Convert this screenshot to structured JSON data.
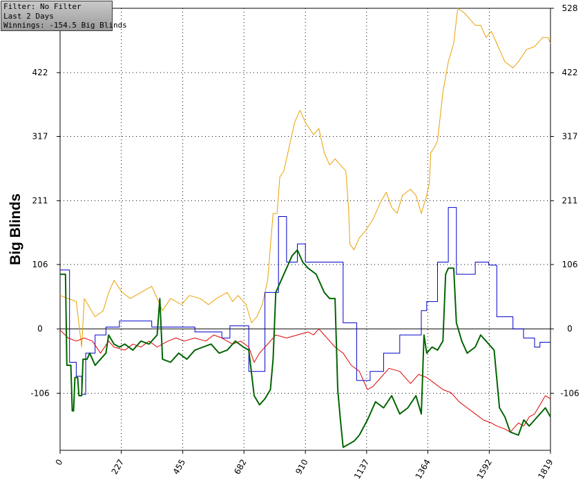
{
  "info_box": {
    "filter": "Filter: No Filter",
    "period": "Last  2 Days",
    "winnings": "Winnings: -154.5 Big Blinds"
  },
  "chart_data": {
    "type": "line",
    "title": "",
    "xlabel": "",
    "ylabel": "Big Blinds",
    "xlim": [
      0,
      1819
    ],
    "ylim": [
      -200,
      528
    ],
    "x_ticks": [
      "0",
      "227",
      "455",
      "682",
      "910",
      "1137",
      "1364",
      "1592",
      "1819"
    ],
    "y_ticks": [
      "528",
      "422",
      "317",
      "211",
      "106",
      "0",
      "-106"
    ],
    "grid": true,
    "series": [
      {
        "color": "#e8a000",
        "points": [
          [
            0,
            55
          ],
          [
            60,
            45
          ],
          [
            80,
            -30
          ],
          [
            90,
            50
          ],
          [
            130,
            20
          ],
          [
            160,
            30
          ],
          [
            180,
            60
          ],
          [
            200,
            80
          ],
          [
            230,
            60
          ],
          [
            260,
            50
          ],
          [
            300,
            60
          ],
          [
            340,
            70
          ],
          [
            380,
            30
          ],
          [
            410,
            50
          ],
          [
            450,
            40
          ],
          [
            480,
            55
          ],
          [
            520,
            50
          ],
          [
            550,
            40
          ],
          [
            580,
            50
          ],
          [
            620,
            60
          ],
          [
            640,
            45
          ],
          [
            660,
            55
          ],
          [
            690,
            40
          ],
          [
            710,
            10
          ],
          [
            730,
            20
          ],
          [
            750,
            40
          ],
          [
            770,
            80
          ],
          [
            790,
            190
          ],
          [
            805,
            190
          ],
          [
            815,
            250
          ],
          [
            830,
            260
          ],
          [
            850,
            300
          ],
          [
            870,
            340
          ],
          [
            890,
            360
          ],
          [
            910,
            340
          ],
          [
            940,
            320
          ],
          [
            960,
            330
          ],
          [
            980,
            290
          ],
          [
            1000,
            270
          ],
          [
            1020,
            280
          ],
          [
            1040,
            270
          ],
          [
            1060,
            260
          ],
          [
            1070,
            200
          ],
          [
            1075,
            140
          ],
          [
            1090,
            130
          ],
          [
            1110,
            150
          ],
          [
            1130,
            160
          ],
          [
            1160,
            180
          ],
          [
            1190,
            210
          ],
          [
            1210,
            225
          ],
          [
            1230,
            200
          ],
          [
            1250,
            190
          ],
          [
            1270,
            220
          ],
          [
            1300,
            230
          ],
          [
            1320,
            220
          ],
          [
            1340,
            190
          ],
          [
            1360,
            220
          ],
          [
            1370,
            240
          ],
          [
            1375,
            290
          ],
          [
            1390,
            300
          ],
          [
            1400,
            310
          ],
          [
            1420,
            390
          ],
          [
            1440,
            440
          ],
          [
            1460,
            470
          ],
          [
            1475,
            528
          ],
          [
            1500,
            520
          ],
          [
            1520,
            510
          ],
          [
            1540,
            500
          ],
          [
            1560,
            500
          ],
          [
            1580,
            480
          ],
          [
            1600,
            490
          ],
          [
            1620,
            470
          ],
          [
            1630,
            460
          ],
          [
            1650,
            440
          ],
          [
            1680,
            430
          ],
          [
            1700,
            440
          ],
          [
            1730,
            460
          ],
          [
            1760,
            465
          ],
          [
            1790,
            480
          ],
          [
            1810,
            480
          ],
          [
            1819,
            470
          ]
        ]
      },
      {
        "color": "#0000cc",
        "points": [
          [
            0,
            97
          ],
          [
            35,
            97
          ],
          [
            35,
            -55
          ],
          [
            60,
            -55
          ],
          [
            60,
            -78
          ],
          [
            80,
            -78
          ],
          [
            80,
            -108
          ],
          [
            95,
            -108
          ],
          [
            95,
            -40
          ],
          [
            130,
            -40
          ],
          [
            130,
            -10
          ],
          [
            170,
            -10
          ],
          [
            170,
            3
          ],
          [
            220,
            3
          ],
          [
            220,
            13
          ],
          [
            340,
            13
          ],
          [
            340,
            3
          ],
          [
            500,
            3
          ],
          [
            500,
            -5
          ],
          [
            600,
            -5
          ],
          [
            600,
            -15
          ],
          [
            630,
            -15
          ],
          [
            630,
            5
          ],
          [
            700,
            5
          ],
          [
            700,
            -70
          ],
          [
            760,
            -70
          ],
          [
            760,
            60
          ],
          [
            810,
            60
          ],
          [
            810,
            185
          ],
          [
            840,
            185
          ],
          [
            840,
            110
          ],
          [
            880,
            110
          ],
          [
            880,
            140
          ],
          [
            910,
            140
          ],
          [
            910,
            110
          ],
          [
            1050,
            110
          ],
          [
            1050,
            10
          ],
          [
            1100,
            10
          ],
          [
            1100,
            -85
          ],
          [
            1150,
            -85
          ],
          [
            1150,
            -70
          ],
          [
            1200,
            -70
          ],
          [
            1200,
            -40
          ],
          [
            1260,
            -40
          ],
          [
            1260,
            -10
          ],
          [
            1340,
            -10
          ],
          [
            1340,
            30
          ],
          [
            1360,
            30
          ],
          [
            1360,
            45
          ],
          [
            1400,
            45
          ],
          [
            1400,
            110
          ],
          [
            1440,
            110
          ],
          [
            1440,
            200
          ],
          [
            1470,
            200
          ],
          [
            1470,
            90
          ],
          [
            1540,
            90
          ],
          [
            1540,
            110
          ],
          [
            1590,
            110
          ],
          [
            1590,
            105
          ],
          [
            1620,
            105
          ],
          [
            1620,
            20
          ],
          [
            1680,
            20
          ],
          [
            1680,
            0
          ],
          [
            1719,
            0
          ],
          [
            1719,
            -15
          ],
          [
            1760,
            -15
          ],
          [
            1760,
            -30
          ],
          [
            1780,
            -30
          ],
          [
            1780,
            -22
          ],
          [
            1819,
            -22
          ]
        ]
      },
      {
        "color": "#dd0000",
        "points": [
          [
            0,
            -2
          ],
          [
            30,
            -15
          ],
          [
            60,
            -20
          ],
          [
            90,
            -15
          ],
          [
            120,
            -20
          ],
          [
            150,
            -40
          ],
          [
            180,
            -20
          ],
          [
            200,
            -30
          ],
          [
            240,
            -35
          ],
          [
            270,
            -25
          ],
          [
            300,
            -30
          ],
          [
            330,
            -20
          ],
          [
            360,
            -30
          ],
          [
            400,
            -20
          ],
          [
            430,
            -15
          ],
          [
            460,
            -20
          ],
          [
            500,
            -15
          ],
          [
            540,
            -20
          ],
          [
            570,
            -10
          ],
          [
            600,
            -15
          ],
          [
            640,
            -25
          ],
          [
            670,
            -20
          ],
          [
            700,
            -30
          ],
          [
            720,
            -55
          ],
          [
            740,
            -40
          ],
          [
            760,
            -30
          ],
          [
            780,
            -20
          ],
          [
            800,
            -10
          ],
          [
            840,
            -15
          ],
          [
            880,
            -10
          ],
          [
            920,
            -5
          ],
          [
            940,
            -10
          ],
          [
            960,
            0
          ],
          [
            980,
            -10
          ],
          [
            1000,
            -20
          ],
          [
            1020,
            -30
          ],
          [
            1050,
            -40
          ],
          [
            1080,
            -60
          ],
          [
            1110,
            -70
          ],
          [
            1140,
            -100
          ],
          [
            1160,
            -95
          ],
          [
            1190,
            -80
          ],
          [
            1220,
            -65
          ],
          [
            1260,
            -70
          ],
          [
            1300,
            -90
          ],
          [
            1330,
            -75
          ],
          [
            1360,
            -80
          ],
          [
            1390,
            -90
          ],
          [
            1420,
            -100
          ],
          [
            1450,
            -105
          ],
          [
            1480,
            -120
          ],
          [
            1510,
            -130
          ],
          [
            1540,
            -140
          ],
          [
            1570,
            -150
          ],
          [
            1600,
            -155
          ],
          [
            1620,
            -160
          ],
          [
            1650,
            -165
          ],
          [
            1670,
            -170
          ],
          [
            1700,
            -155
          ],
          [
            1720,
            -160
          ],
          [
            1740,
            -145
          ],
          [
            1760,
            -140
          ],
          [
            1780,
            -125
          ],
          [
            1800,
            -110
          ],
          [
            1819,
            -115
          ]
        ]
      },
      {
        "color": "#006400",
        "points": [
          [
            0,
            90
          ],
          [
            20,
            90
          ],
          [
            25,
            -60
          ],
          [
            40,
            -60
          ],
          [
            45,
            -135
          ],
          [
            50,
            -135
          ],
          [
            55,
            -80
          ],
          [
            65,
            -80
          ],
          [
            70,
            -110
          ],
          [
            80,
            -110
          ],
          [
            85,
            -50
          ],
          [
            100,
            -50
          ],
          [
            110,
            -40
          ],
          [
            130,
            -60
          ],
          [
            150,
            -50
          ],
          [
            170,
            -40
          ],
          [
            180,
            -10
          ],
          [
            200,
            -25
          ],
          [
            220,
            -30
          ],
          [
            240,
            -25
          ],
          [
            270,
            -35
          ],
          [
            300,
            -20
          ],
          [
            330,
            -25
          ],
          [
            360,
            -10
          ],
          [
            370,
            50
          ],
          [
            380,
            -50
          ],
          [
            410,
            -55
          ],
          [
            440,
            -40
          ],
          [
            470,
            -50
          ],
          [
            500,
            -35
          ],
          [
            530,
            -30
          ],
          [
            560,
            -25
          ],
          [
            590,
            -40
          ],
          [
            620,
            -35
          ],
          [
            650,
            -20
          ],
          [
            680,
            -30
          ],
          [
            700,
            -35
          ],
          [
            720,
            -110
          ],
          [
            740,
            -125
          ],
          [
            760,
            -115
          ],
          [
            780,
            -100
          ],
          [
            790,
            -50
          ],
          [
            800,
            60
          ],
          [
            820,
            80
          ],
          [
            840,
            100
          ],
          [
            860,
            120
          ],
          [
            880,
            130
          ],
          [
            900,
            110
          ],
          [
            920,
            100
          ],
          [
            950,
            90
          ],
          [
            980,
            60
          ],
          [
            1000,
            50
          ],
          [
            1020,
            50
          ],
          [
            1030,
            -100
          ],
          [
            1040,
            -150
          ],
          [
            1050,
            -195
          ],
          [
            1070,
            -190
          ],
          [
            1090,
            -185
          ],
          [
            1110,
            -175
          ],
          [
            1140,
            -150
          ],
          [
            1170,
            -120
          ],
          [
            1200,
            -130
          ],
          [
            1230,
            -110
          ],
          [
            1260,
            -140
          ],
          [
            1290,
            -130
          ],
          [
            1320,
            -110
          ],
          [
            1340,
            -140
          ],
          [
            1350,
            -10
          ],
          [
            1360,
            -40
          ],
          [
            1380,
            -30
          ],
          [
            1400,
            -35
          ],
          [
            1420,
            -20
          ],
          [
            1430,
            90
          ],
          [
            1440,
            100
          ],
          [
            1460,
            100
          ],
          [
            1470,
            10
          ],
          [
            1490,
            -20
          ],
          [
            1510,
            -40
          ],
          [
            1540,
            -30
          ],
          [
            1560,
            -10
          ],
          [
            1580,
            -20
          ],
          [
            1610,
            -35
          ],
          [
            1630,
            -130
          ],
          [
            1650,
            -145
          ],
          [
            1670,
            -170
          ],
          [
            1700,
            -175
          ],
          [
            1720,
            -150
          ],
          [
            1740,
            -160
          ],
          [
            1760,
            -150
          ],
          [
            1780,
            -140
          ],
          [
            1800,
            -130
          ],
          [
            1819,
            -145
          ]
        ]
      }
    ]
  }
}
